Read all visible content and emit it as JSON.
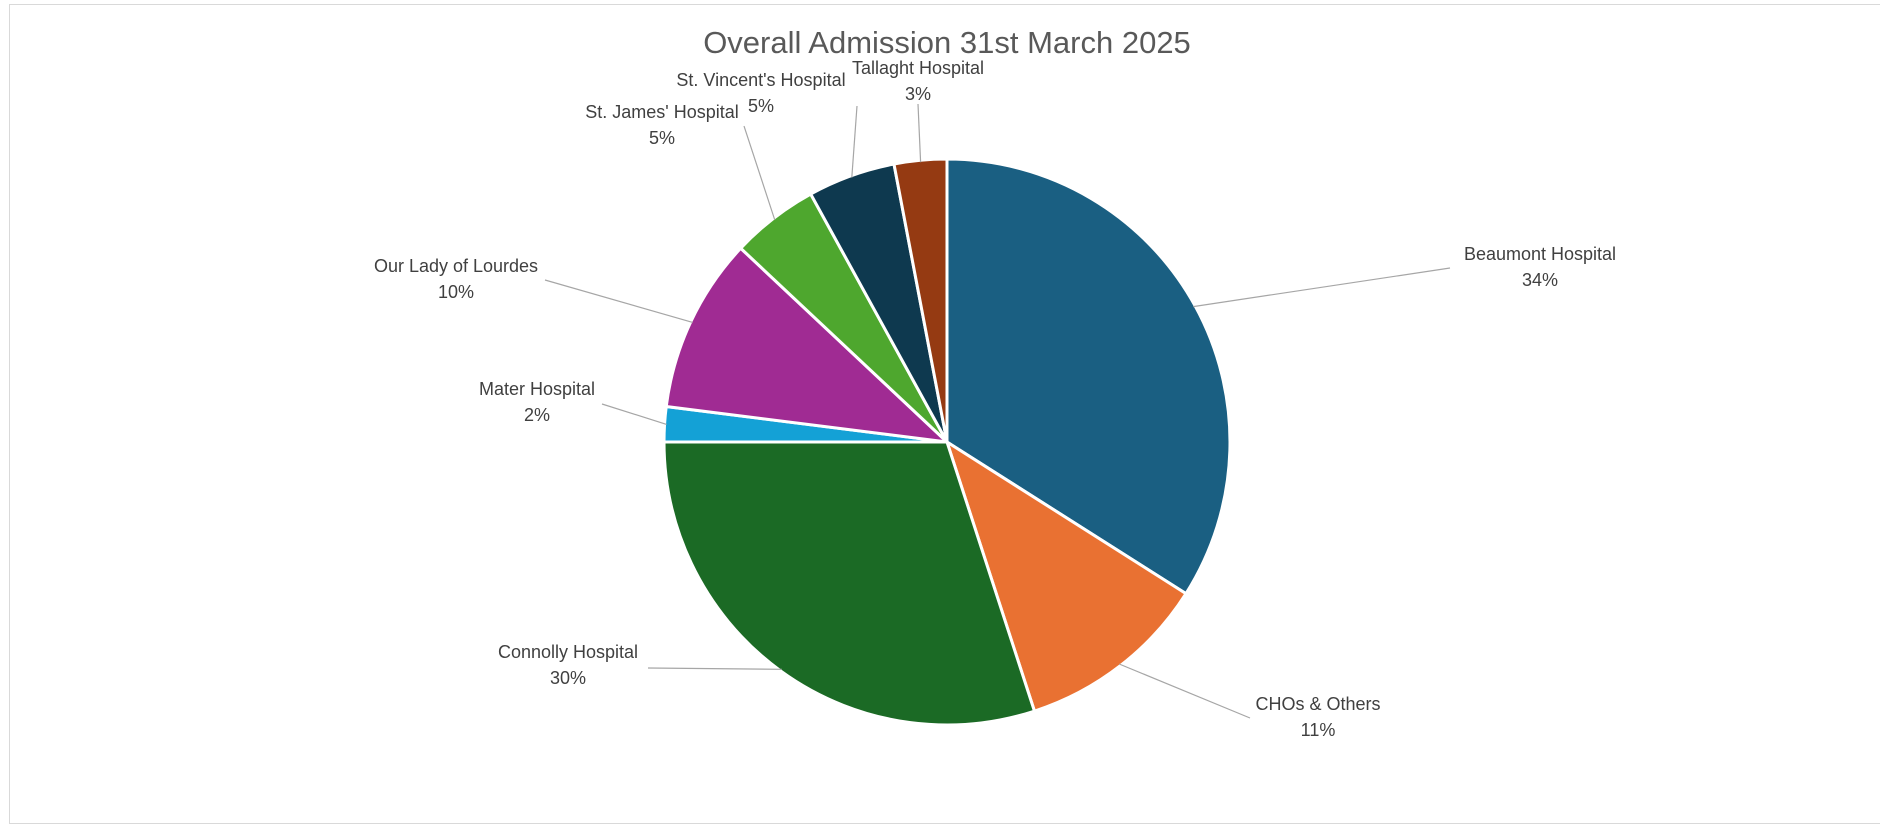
{
  "chart_data": {
    "type": "pie",
    "title": "Overall Admission 31st March 2025",
    "slices": [
      {
        "label": "Beaumont Hospital",
        "value": 34,
        "value_label": "34%",
        "color": "#1a5f82"
      },
      {
        "label": "CHOs & Others",
        "value": 11,
        "value_label": "11%",
        "color": "#e97132"
      },
      {
        "label": "Connolly Hospital",
        "value": 30,
        "value_label": "30%",
        "color": "#1b6a25"
      },
      {
        "label": "Mater Hospital",
        "value": 2,
        "value_label": "2%",
        "color": "#14a1d6"
      },
      {
        "label": "Our Lady of Lourdes",
        "value": 10,
        "value_label": "10%",
        "color": "#a02b93"
      },
      {
        "label": "St. James' Hospital",
        "value": 5,
        "value_label": "5%",
        "color": "#4ea72e"
      },
      {
        "label": "St. Vincent's Hospital",
        "value": 5,
        "value_label": "5%",
        "color": "#0e394f"
      },
      {
        "label": "Tallaght Hospital",
        "value": 3,
        "value_label": "3%",
        "color": "#953a12"
      }
    ],
    "start_angle_degrees": 0,
    "direction": "clockwise",
    "legend": "none",
    "data_labels": "outside-with-leader-lines"
  }
}
